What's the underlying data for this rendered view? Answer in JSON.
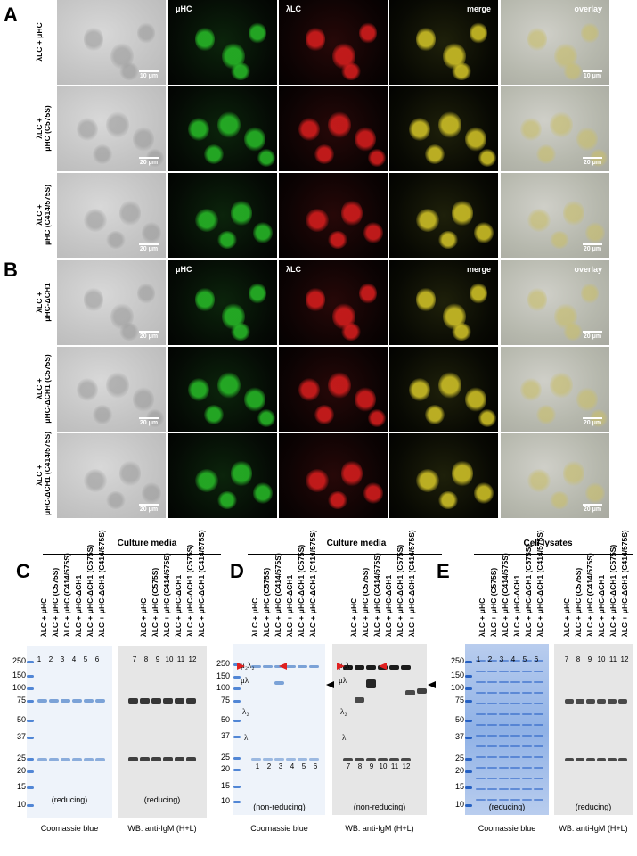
{
  "panels": {
    "A": "A",
    "B": "B",
    "C": "C",
    "D": "D",
    "E": "E"
  },
  "microscopy": {
    "channels": [
      "μHC",
      "λLC",
      "merge",
      "overlay"
    ],
    "rows_A": [
      {
        "label_lines": [
          "λLC + μHC"
        ],
        "scale": "10 μm"
      },
      {
        "label_lines": [
          "λLC +",
          "μHC (C575S)"
        ],
        "scale": "20 μm"
      },
      {
        "label_lines": [
          "λLC +",
          "μHC (C414/575S)"
        ],
        "scale": "20 μm"
      }
    ],
    "rows_B": [
      {
        "label_lines": [
          "λLC +",
          "μHC-ΔCH1"
        ],
        "scale": "20 μm"
      },
      {
        "label_lines": [
          "λLC +",
          "μHC-ΔCH1 (C575S)"
        ],
        "scale": "20 μm"
      },
      {
        "label_lines": [
          "λLC +",
          "μHC-ΔCH1 (C414/575S)"
        ],
        "scale": "20 μm"
      }
    ]
  },
  "gels": {
    "section_titles": [
      "Culture media",
      "Culture media",
      "Cell lysates"
    ],
    "lane_labels": [
      "λLC + μHC",
      "λLC + μHC (C575S)",
      "λLC + μHC (C414/575S)",
      "λLC + μHC-ΔCH1",
      "λLC + μHC-ΔCH1 (C575S)",
      "λLC + μHC-ΔCH1 (C414/575S)"
    ],
    "mw_markers": [
      "250",
      "150",
      "100",
      "75",
      "50",
      "37",
      "25",
      "20",
      "15",
      "10"
    ],
    "lane_numbers_left": [
      "1",
      "2",
      "3",
      "4",
      "5",
      "6"
    ],
    "lane_numbers_right": [
      "7",
      "8",
      "9",
      "10",
      "11",
      "12"
    ],
    "condition_reducing": "(reducing)",
    "condition_nonreducing": "(non-reducing)",
    "caption_coomassie": "Coomassie blue",
    "caption_wb": "WB: anti-IgM (H+L)",
    "species": {
      "mu2lambda2": "μ₂λ₂",
      "mulambda": "μλ",
      "lambda2": "λ₂",
      "lambda": "λ"
    },
    "colors": {
      "red_arrow": "#e02020",
      "black_arrow": "#000000",
      "coomassie_band": "#4a7fc8",
      "wb_band": "#222222"
    }
  }
}
